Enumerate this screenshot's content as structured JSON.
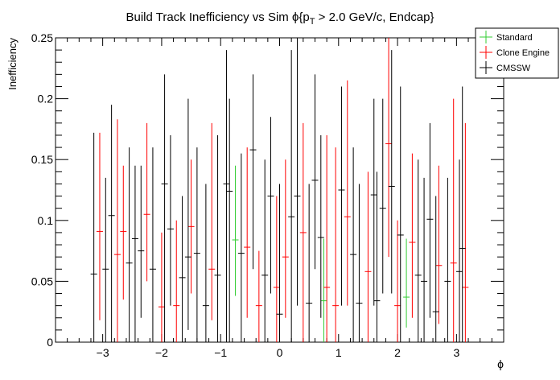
{
  "chart_data": {
    "type": "scatter",
    "title_parts": {
      "pre": "Build Track Inefficiency vs Sim ",
      "phi": "ϕ",
      "brace_open": "{p",
      "sub": "T",
      "post": " > 2.0 GeV/c, Endcap}"
    },
    "xlabel": "ϕ",
    "ylabel": "Inefficiency",
    "xlim": [
      -3.8,
      3.8
    ],
    "ylim": [
      0,
      0.25
    ],
    "x_ticks": [
      -3,
      -2,
      -1,
      0,
      1,
      2,
      3
    ],
    "x_tick_labels": [
      "−3",
      "−2",
      "−1",
      "0",
      "1",
      "2",
      "3"
    ],
    "y_ticks": [
      0,
      0.05,
      0.1,
      0.15,
      0.2,
      0.25
    ],
    "y_tick_labels": [
      "0",
      "0.05",
      "0.1",
      "0.15",
      "0.2",
      "0.25"
    ],
    "legend": {
      "placement": "top-right",
      "entries": [
        {
          "name": "Standard",
          "color": "#33cc33"
        },
        {
          "name": "Clone Engine",
          "color": "#ff0000"
        },
        {
          "name": "CMSSW",
          "color": "#000000"
        }
      ]
    },
    "series": [
      {
        "name": "Standard",
        "color": "#33cc33",
        "points": [
          {
            "x": -0.75,
            "y": 0.084,
            "lo": 0.038,
            "hi": 0.145
          },
          {
            "x": 0.75,
            "y": 0.034,
            "lo": 0.0,
            "hi": 0.085
          },
          {
            "x": 2.15,
            "y": 0.037,
            "lo": 0.012,
            "hi": 0.085
          }
        ]
      },
      {
        "name": "Clone Engine",
        "color": "#ff0000",
        "points": [
          {
            "x": -3.05,
            "y": 0.091,
            "lo": 0.018,
            "hi": 0.172
          },
          {
            "x": -2.75,
            "y": 0.072,
            "lo": 0.0,
            "hi": 0.183
          },
          {
            "x": -2.65,
            "y": 0.091,
            "lo": 0.035,
            "hi": 0.145
          },
          {
            "x": -2.25,
            "y": 0.105,
            "lo": 0.05,
            "hi": 0.18
          },
          {
            "x": -2.0,
            "y": 0.029,
            "lo": 0.0,
            "hi": 0.09
          },
          {
            "x": -1.75,
            "y": 0.03,
            "lo": 0.0,
            "hi": 0.1
          },
          {
            "x": -1.5,
            "y": 0.095,
            "lo": 0.04,
            "hi": 0.15
          },
          {
            "x": -1.15,
            "y": 0.06,
            "lo": 0.018,
            "hi": 0.18
          },
          {
            "x": -0.55,
            "y": 0.078,
            "lo": 0.02,
            "hi": 0.16
          },
          {
            "x": -0.35,
            "y": 0.03,
            "lo": 0.0,
            "hi": 0.075
          },
          {
            "x": -0.05,
            "y": 0.045,
            "lo": 0.0,
            "hi": 0.12
          },
          {
            "x": 0.1,
            "y": 0.07,
            "lo": 0.02,
            "hi": 0.15
          },
          {
            "x": 0.4,
            "y": 0.09,
            "lo": 0.0,
            "hi": 0.18
          },
          {
            "x": 0.8,
            "y": 0.045,
            "lo": 0.0,
            "hi": 0.17
          },
          {
            "x": 0.95,
            "y": 0.03,
            "lo": 0.0,
            "hi": 0.16
          },
          {
            "x": 1.15,
            "y": 0.103,
            "lo": 0.03,
            "hi": 0.215
          },
          {
            "x": 1.5,
            "y": 0.058,
            "lo": 0.0,
            "hi": 0.14
          },
          {
            "x": 1.85,
            "y": 0.163,
            "lo": 0.07,
            "hi": 0.25
          },
          {
            "x": 2.0,
            "y": 0.03,
            "lo": 0.0,
            "hi": 0.1
          },
          {
            "x": 2.25,
            "y": 0.082,
            "lo": 0.02,
            "hi": 0.155
          },
          {
            "x": 2.7,
            "y": 0.063,
            "lo": 0.015,
            "hi": 0.145
          },
          {
            "x": 2.95,
            "y": 0.065,
            "lo": 0.0,
            "hi": 0.2
          },
          {
            "x": 3.15,
            "y": 0.045,
            "lo": 0.0,
            "hi": 0.18
          }
        ]
      },
      {
        "name": "CMSSW",
        "color": "#000000",
        "points": [
          {
            "x": -3.15,
            "y": 0.056,
            "lo": 0.0,
            "hi": 0.172
          },
          {
            "x": -2.95,
            "y": 0.06,
            "lo": 0.0,
            "hi": 0.135
          },
          {
            "x": -2.85,
            "y": 0.104,
            "lo": 0.0,
            "hi": 0.195
          },
          {
            "x": -2.55,
            "y": 0.065,
            "lo": 0.0,
            "hi": 0.16
          },
          {
            "x": -2.45,
            "y": 0.085,
            "lo": 0.0,
            "hi": 0.145
          },
          {
            "x": -2.35,
            "y": 0.075,
            "lo": 0.02,
            "hi": 0.145
          },
          {
            "x": -2.15,
            "y": 0.06,
            "lo": 0.0,
            "hi": 0.16
          },
          {
            "x": -1.95,
            "y": 0.13,
            "lo": 0.0,
            "hi": 0.22
          },
          {
            "x": -1.85,
            "y": 0.093,
            "lo": 0.03,
            "hi": 0.17
          },
          {
            "x": -1.65,
            "y": 0.053,
            "lo": 0.0,
            "hi": 0.12
          },
          {
            "x": -1.55,
            "y": 0.07,
            "lo": 0.01,
            "hi": 0.2
          },
          {
            "x": -1.4,
            "y": 0.073,
            "lo": 0.0,
            "hi": 0.16
          },
          {
            "x": -1.25,
            "y": 0.03,
            "lo": 0.0,
            "hi": 0.13
          },
          {
            "x": -1.05,
            "y": 0.055,
            "lo": 0.0,
            "hi": 0.17
          },
          {
            "x": -0.9,
            "y": 0.13,
            "lo": 0.0,
            "hi": 0.24
          },
          {
            "x": -0.85,
            "y": 0.124,
            "lo": 0.0,
            "hi": 0.2
          },
          {
            "x": -0.65,
            "y": 0.073,
            "lo": 0.0,
            "hi": 0.155
          },
          {
            "x": -0.45,
            "y": 0.158,
            "lo": 0.06,
            "hi": 0.22
          },
          {
            "x": -0.25,
            "y": 0.055,
            "lo": 0.0,
            "hi": 0.15
          },
          {
            "x": -0.15,
            "y": 0.12,
            "lo": 0.04,
            "hi": 0.185
          },
          {
            "x": 0.0,
            "y": 0.023,
            "lo": 0.0,
            "hi": 0.13
          },
          {
            "x": 0.2,
            "y": 0.103,
            "lo": 0.0,
            "hi": 0.24
          },
          {
            "x": 0.3,
            "y": 0.12,
            "lo": 0.03,
            "hi": 0.25
          },
          {
            "x": 0.5,
            "y": 0.032,
            "lo": 0.0,
            "hi": 0.13
          },
          {
            "x": 0.6,
            "y": 0.133,
            "lo": 0.06,
            "hi": 0.22
          },
          {
            "x": 0.7,
            "y": 0.086,
            "lo": 0.02,
            "hi": 0.17
          },
          {
            "x": 1.05,
            "y": 0.125,
            "lo": 0.03,
            "hi": 0.21
          },
          {
            "x": 1.25,
            "y": 0.072,
            "lo": 0.0,
            "hi": 0.16
          },
          {
            "x": 1.35,
            "y": 0.032,
            "lo": 0.0,
            "hi": 0.13
          },
          {
            "x": 1.6,
            "y": 0.121,
            "lo": 0.03,
            "hi": 0.2
          },
          {
            "x": 1.65,
            "y": 0.034,
            "lo": 0.0,
            "hi": 0.14
          },
          {
            "x": 1.75,
            "y": 0.11,
            "lo": 0.04,
            "hi": 0.2
          },
          {
            "x": 1.9,
            "y": 0.128,
            "lo": 0.04,
            "hi": 0.24
          },
          {
            "x": 2.05,
            "y": 0.088,
            "lo": 0.0,
            "hi": 0.21
          },
          {
            "x": 2.35,
            "y": 0.055,
            "lo": 0.0,
            "hi": 0.15
          },
          {
            "x": 2.45,
            "y": 0.05,
            "lo": 0.0,
            "hi": 0.135
          },
          {
            "x": 2.55,
            "y": 0.101,
            "lo": 0.02,
            "hi": 0.18
          },
          {
            "x": 2.65,
            "y": 0.025,
            "lo": 0.0,
            "hi": 0.12
          },
          {
            "x": 2.85,
            "y": 0.05,
            "lo": 0.0,
            "hi": 0.135
          },
          {
            "x": 3.05,
            "y": 0.058,
            "lo": 0.0,
            "hi": 0.15
          },
          {
            "x": 3.1,
            "y": 0.077,
            "lo": 0.0,
            "hi": 0.21
          }
        ]
      }
    ]
  }
}
